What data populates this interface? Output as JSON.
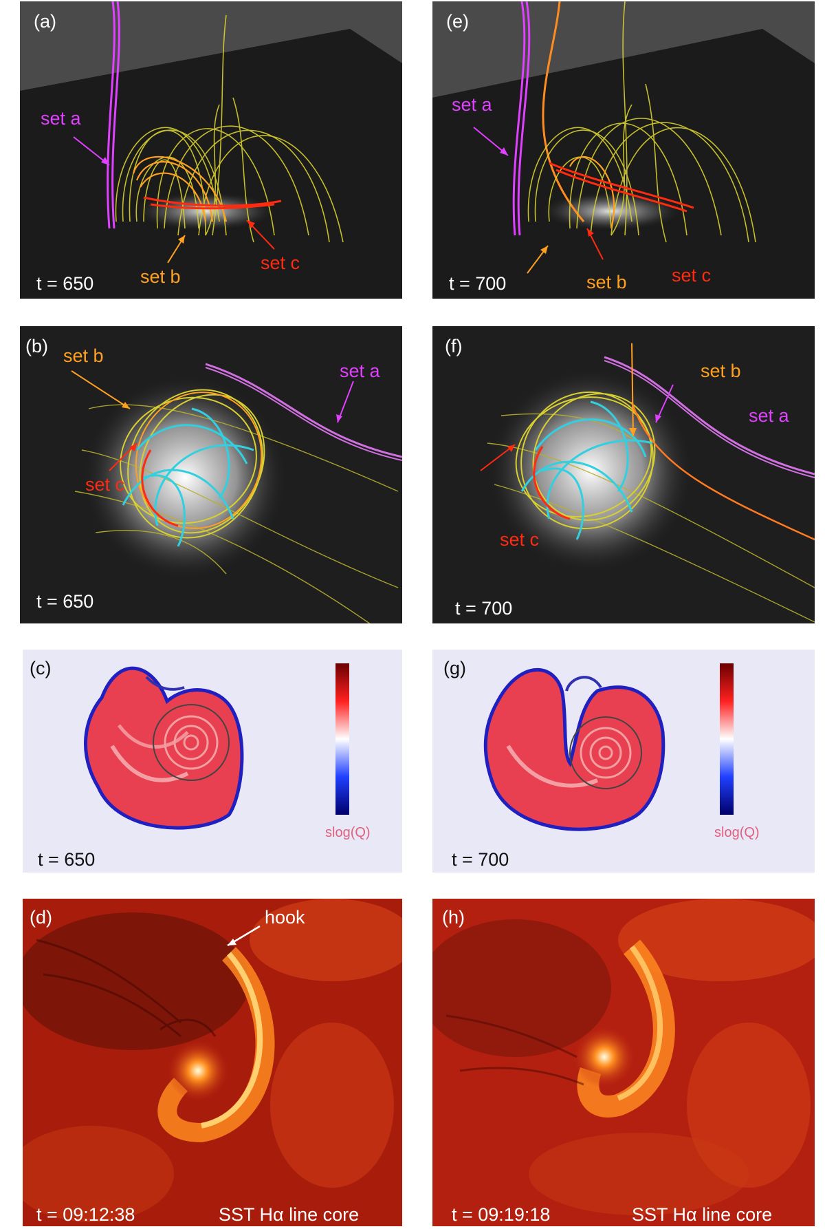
{
  "panels": {
    "a": {
      "label": "(a)",
      "time": "t = 650",
      "set_a": "set a",
      "set_b": "set b",
      "set_c": "set c"
    },
    "e": {
      "label": "(e)",
      "time": "t = 700",
      "set_a": "set a",
      "set_b": "set b",
      "set_c": "set c"
    },
    "b": {
      "label": "(b)",
      "time": "t = 650",
      "set_a": "set a",
      "set_b": "set b",
      "set_c": "set c"
    },
    "f": {
      "label": "(f)",
      "time": "t = 700",
      "set_a": "set a",
      "set_b": "set b",
      "set_c": "set c"
    },
    "c": {
      "label": "(c)",
      "time": "t = 650",
      "colorbar_label": "slog(Q)"
    },
    "g": {
      "label": "(g)",
      "time": "t = 700",
      "colorbar_label": "slog(Q)"
    },
    "d": {
      "label": "(d)",
      "time": "t = 09:12:38",
      "caption": "SST Hα line core",
      "annotation": "hook"
    },
    "h": {
      "label": "(h)",
      "time": "t = 09:19:18",
      "caption": "SST Hα line core"
    }
  },
  "colors": {
    "set_a": "#e040ff",
    "set_b": "#ffa020",
    "set_c": "#ff2a10",
    "fieldlines": "#d8d030",
    "cyan_lines": "#30d0e0",
    "panel_bg": "#1c1c1c",
    "q_red": "#e0202a",
    "q_blue": "#2020c0"
  }
}
